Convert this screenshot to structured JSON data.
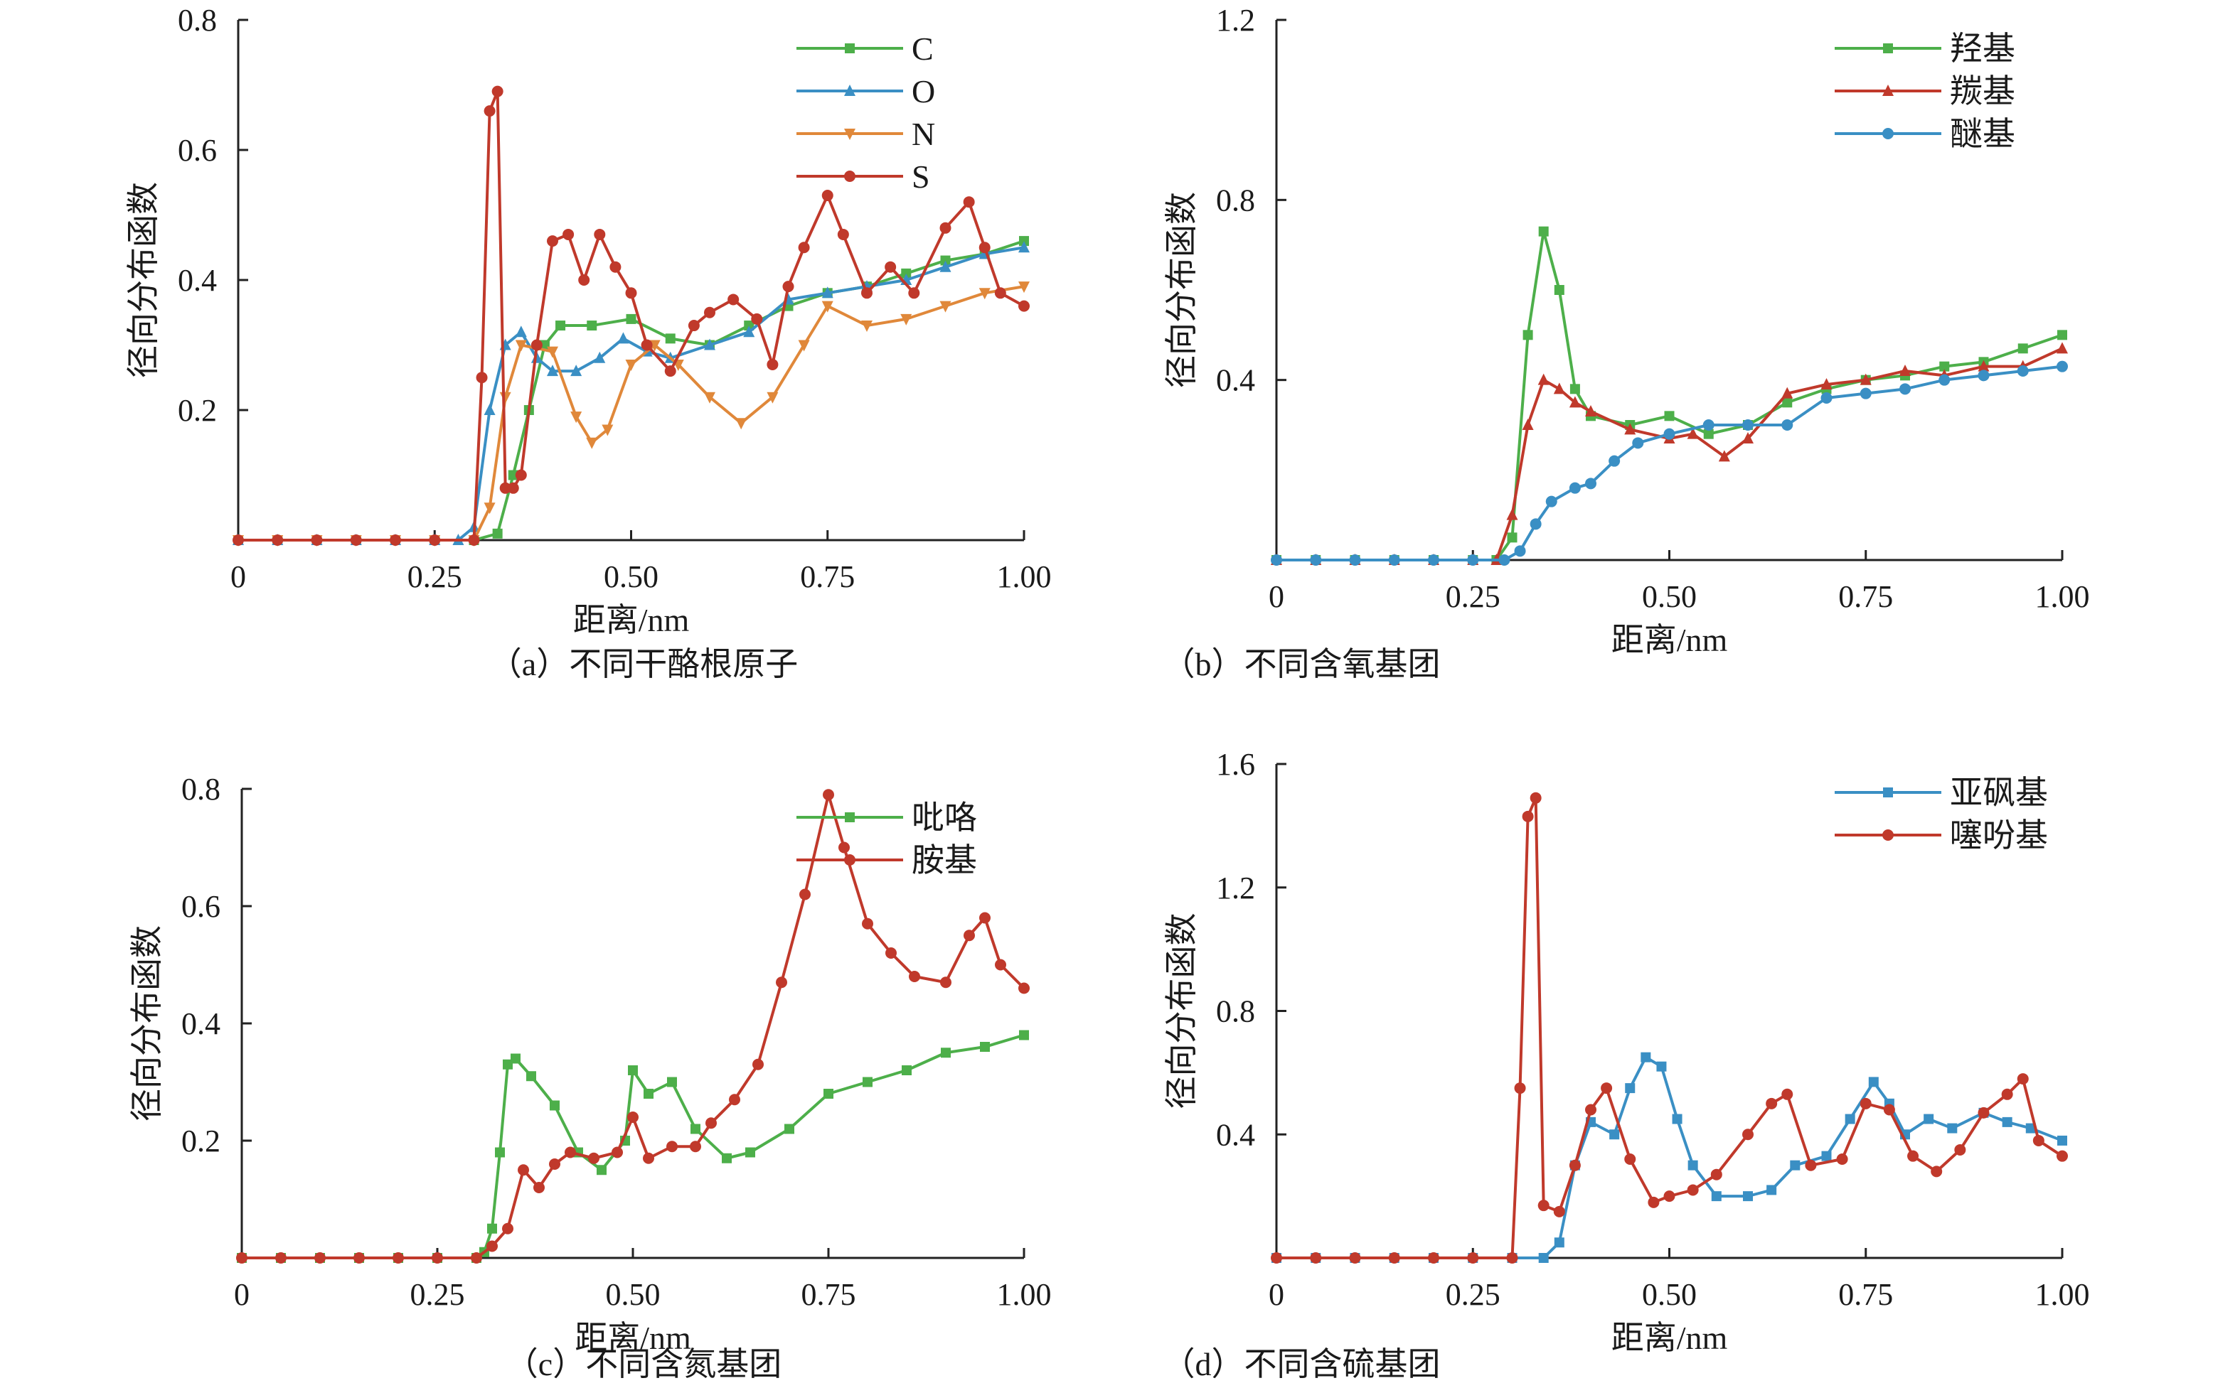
{
  "chart_data": [
    {
      "type": "line",
      "caption": "（a）不同干酪根原子",
      "xlabel": "距离/nm",
      "ylabel": "径向分布函数",
      "xlim": [
        0,
        1.0
      ],
      "ylim": [
        0,
        0.8
      ],
      "xticks": [
        0,
        0.25,
        0.5,
        0.75,
        1.0
      ],
      "xtick_labels": [
        "0",
        "0.25",
        "0.50",
        "0.75",
        "1.00"
      ],
      "yticks": [
        0.2,
        0.4,
        0.6,
        0.8
      ],
      "ytick_labels": [
        "0.2",
        "0.4",
        "0.6",
        "0.8"
      ],
      "legend_position": "top-right",
      "series": [
        {
          "name": "C",
          "color": "#4daf4a",
          "marker": "square",
          "x": [
            0.0,
            0.05,
            0.1,
            0.15,
            0.2,
            0.25,
            0.3,
            0.33,
            0.35,
            0.37,
            0.39,
            0.41,
            0.45,
            0.5,
            0.55,
            0.6,
            0.65,
            0.7,
            0.75,
            0.8,
            0.85,
            0.9,
            0.95,
            1.0
          ],
          "y": [
            0,
            0,
            0,
            0,
            0,
            0,
            0,
            0.01,
            0.1,
            0.2,
            0.3,
            0.33,
            0.33,
            0.34,
            0.31,
            0.3,
            0.33,
            0.36,
            0.38,
            0.39,
            0.41,
            0.43,
            0.44,
            0.46
          ]
        },
        {
          "name": "O",
          "color": "#3a8fc4",
          "marker": "triangle-up",
          "x": [
            0.0,
            0.05,
            0.1,
            0.15,
            0.2,
            0.25,
            0.28,
            0.3,
            0.32,
            0.34,
            0.36,
            0.38,
            0.4,
            0.43,
            0.46,
            0.49,
            0.52,
            0.55,
            0.6,
            0.65,
            0.7,
            0.75,
            0.8,
            0.85,
            0.9,
            0.95,
            1.0
          ],
          "y": [
            0,
            0,
            0,
            0,
            0,
            0,
            0,
            0.02,
            0.2,
            0.3,
            0.32,
            0.28,
            0.26,
            0.26,
            0.28,
            0.31,
            0.29,
            0.28,
            0.3,
            0.32,
            0.37,
            0.38,
            0.39,
            0.4,
            0.42,
            0.44,
            0.45
          ]
        },
        {
          "name": "N",
          "color": "#e0883a",
          "marker": "triangle-down",
          "x": [
            0.0,
            0.05,
            0.1,
            0.15,
            0.2,
            0.25,
            0.3,
            0.32,
            0.34,
            0.36,
            0.4,
            0.43,
            0.45,
            0.47,
            0.5,
            0.53,
            0.56,
            0.6,
            0.64,
            0.68,
            0.72,
            0.75,
            0.8,
            0.85,
            0.9,
            0.95,
            1.0
          ],
          "y": [
            0,
            0,
            0,
            0,
            0,
            0,
            0,
            0.05,
            0.22,
            0.3,
            0.29,
            0.19,
            0.15,
            0.17,
            0.27,
            0.3,
            0.27,
            0.22,
            0.18,
            0.22,
            0.3,
            0.36,
            0.33,
            0.34,
            0.36,
            0.38,
            0.39
          ]
        },
        {
          "name": "S",
          "color": "#c0392b",
          "marker": "circle",
          "x": [
            0.0,
            0.05,
            0.1,
            0.15,
            0.2,
            0.25,
            0.3,
            0.31,
            0.32,
            0.33,
            0.34,
            0.35,
            0.36,
            0.38,
            0.4,
            0.42,
            0.44,
            0.46,
            0.48,
            0.5,
            0.52,
            0.55,
            0.58,
            0.6,
            0.63,
            0.66,
            0.68,
            0.7,
            0.72,
            0.75,
            0.77,
            0.8,
            0.83,
            0.86,
            0.9,
            0.93,
            0.95,
            0.97,
            1.0
          ],
          "y": [
            0,
            0,
            0,
            0,
            0,
            0,
            0,
            0.25,
            0.66,
            0.69,
            0.08,
            0.08,
            0.1,
            0.3,
            0.46,
            0.47,
            0.4,
            0.47,
            0.42,
            0.38,
            0.3,
            0.26,
            0.33,
            0.35,
            0.37,
            0.34,
            0.27,
            0.39,
            0.45,
            0.53,
            0.47,
            0.38,
            0.42,
            0.38,
            0.48,
            0.52,
            0.45,
            0.38,
            0.36
          ]
        }
      ]
    },
    {
      "type": "line",
      "caption": "（b）不同含氧基团",
      "xlabel": "距离/nm",
      "ylabel": "径向分布函数",
      "xlim": [
        0,
        1.0
      ],
      "ylim": [
        0,
        1.2
      ],
      "xticks": [
        0,
        0.25,
        0.5,
        0.75,
        1.0
      ],
      "xtick_labels": [
        "0",
        "0.25",
        "0.50",
        "0.75",
        "1.00"
      ],
      "yticks": [
        0.4,
        0.8,
        1.2
      ],
      "ytick_labels": [
        "0.4",
        "0.8",
        "1.2"
      ],
      "legend_position": "top-right",
      "series": [
        {
          "name": "羟基",
          "color": "#4daf4a",
          "marker": "square",
          "x": [
            0.0,
            0.05,
            0.1,
            0.15,
            0.2,
            0.25,
            0.28,
            0.3,
            0.32,
            0.34,
            0.36,
            0.38,
            0.4,
            0.45,
            0.5,
            0.55,
            0.6,
            0.65,
            0.7,
            0.75,
            0.8,
            0.85,
            0.9,
            0.95,
            1.0
          ],
          "y": [
            0,
            0,
            0,
            0,
            0,
            0,
            0,
            0.05,
            0.5,
            0.73,
            0.6,
            0.38,
            0.32,
            0.3,
            0.32,
            0.28,
            0.3,
            0.35,
            0.38,
            0.4,
            0.41,
            0.43,
            0.44,
            0.47,
            0.5
          ]
        },
        {
          "name": "羰基",
          "color": "#c0392b",
          "marker": "triangle-up",
          "x": [
            0.0,
            0.05,
            0.1,
            0.15,
            0.2,
            0.25,
            0.28,
            0.3,
            0.32,
            0.34,
            0.36,
            0.38,
            0.4,
            0.45,
            0.5,
            0.53,
            0.57,
            0.6,
            0.65,
            0.7,
            0.75,
            0.8,
            0.85,
            0.9,
            0.95,
            1.0
          ],
          "y": [
            0,
            0,
            0,
            0,
            0,
            0,
            0,
            0.1,
            0.3,
            0.4,
            0.38,
            0.35,
            0.33,
            0.29,
            0.27,
            0.28,
            0.23,
            0.27,
            0.37,
            0.39,
            0.4,
            0.42,
            0.41,
            0.43,
            0.43,
            0.47
          ]
        },
        {
          "name": "醚基",
          "color": "#3a8fc4",
          "marker": "circle",
          "x": [
            0.0,
            0.05,
            0.1,
            0.15,
            0.2,
            0.25,
            0.29,
            0.31,
            0.33,
            0.35,
            0.38,
            0.4,
            0.43,
            0.46,
            0.5,
            0.55,
            0.6,
            0.65,
            0.7,
            0.75,
            0.8,
            0.85,
            0.9,
            0.95,
            1.0
          ],
          "y": [
            0,
            0,
            0,
            0,
            0,
            0,
            0,
            0.02,
            0.08,
            0.13,
            0.16,
            0.17,
            0.22,
            0.26,
            0.28,
            0.3,
            0.3,
            0.3,
            0.36,
            0.37,
            0.38,
            0.4,
            0.41,
            0.42,
            0.43
          ]
        }
      ]
    },
    {
      "type": "line",
      "caption": "（c）不同含氮基团",
      "xlabel": "距离/nm",
      "ylabel": "径向分布函数",
      "xlim": [
        0,
        1.0
      ],
      "ylim": [
        0,
        0.8
      ],
      "xticks": [
        0,
        0.25,
        0.5,
        0.75,
        1.0
      ],
      "xtick_labels": [
        "0",
        "0.25",
        "0.50",
        "0.75",
        "1.00"
      ],
      "yticks": [
        0.2,
        0.4,
        0.6,
        0.8
      ],
      "ytick_labels": [
        "0.2",
        "0.4",
        "0.6",
        "0.8"
      ],
      "legend_position": "top-right",
      "series": [
        {
          "name": "吡咯",
          "color": "#4daf4a",
          "marker": "square",
          "x": [
            0.0,
            0.05,
            0.1,
            0.15,
            0.2,
            0.25,
            0.3,
            0.31,
            0.32,
            0.33,
            0.34,
            0.35,
            0.37,
            0.4,
            0.43,
            0.46,
            0.49,
            0.5,
            0.52,
            0.55,
            0.58,
            0.62,
            0.65,
            0.7,
            0.75,
            0.8,
            0.85,
            0.9,
            0.95,
            1.0
          ],
          "y": [
            0,
            0,
            0,
            0,
            0,
            0,
            0,
            0.01,
            0.05,
            0.18,
            0.33,
            0.34,
            0.31,
            0.26,
            0.18,
            0.15,
            0.2,
            0.32,
            0.28,
            0.3,
            0.22,
            0.17,
            0.18,
            0.22,
            0.28,
            0.3,
            0.32,
            0.35,
            0.36,
            0.38
          ]
        },
        {
          "name": "胺基",
          "color": "#c0392b",
          "marker": "circle",
          "x": [
            0.0,
            0.05,
            0.1,
            0.15,
            0.2,
            0.25,
            0.3,
            0.32,
            0.34,
            0.36,
            0.38,
            0.4,
            0.42,
            0.45,
            0.48,
            0.5,
            0.52,
            0.55,
            0.58,
            0.6,
            0.63,
            0.66,
            0.69,
            0.72,
            0.75,
            0.77,
            0.8,
            0.83,
            0.86,
            0.9,
            0.93,
            0.95,
            0.97,
            1.0
          ],
          "y": [
            0,
            0,
            0,
            0,
            0,
            0,
            0,
            0.02,
            0.05,
            0.15,
            0.12,
            0.16,
            0.18,
            0.17,
            0.18,
            0.24,
            0.17,
            0.19,
            0.19,
            0.23,
            0.27,
            0.33,
            0.47,
            0.62,
            0.79,
            0.7,
            0.57,
            0.52,
            0.48,
            0.47,
            0.55,
            0.58,
            0.5,
            0.46
          ]
        }
      ]
    },
    {
      "type": "line",
      "caption": "（d）不同含硫基团",
      "xlabel": "距离/nm",
      "ylabel": "径向分布函数",
      "xlim": [
        0,
        1.0
      ],
      "ylim": [
        0,
        1.6
      ],
      "xticks": [
        0,
        0.25,
        0.5,
        0.75,
        1.0
      ],
      "xtick_labels": [
        "0",
        "0.25",
        "0.50",
        "0.75",
        "1.00"
      ],
      "yticks": [
        0.4,
        0.8,
        1.2,
        1.6
      ],
      "ytick_labels": [
        "0.4",
        "0.8",
        "1.2",
        "1.6"
      ],
      "legend_position": "top-right",
      "series": [
        {
          "name": "亚砜基",
          "color": "#3a8fc4",
          "marker": "square",
          "x": [
            0.0,
            0.05,
            0.1,
            0.15,
            0.2,
            0.25,
            0.3,
            0.34,
            0.36,
            0.38,
            0.4,
            0.43,
            0.45,
            0.47,
            0.49,
            0.51,
            0.53,
            0.56,
            0.6,
            0.63,
            0.66,
            0.7,
            0.73,
            0.76,
            0.78,
            0.8,
            0.83,
            0.86,
            0.9,
            0.93,
            0.96,
            1.0
          ],
          "y": [
            0,
            0,
            0,
            0,
            0,
            0,
            0,
            0,
            0.05,
            0.3,
            0.44,
            0.4,
            0.55,
            0.65,
            0.62,
            0.45,
            0.3,
            0.2,
            0.2,
            0.22,
            0.3,
            0.33,
            0.45,
            0.57,
            0.5,
            0.4,
            0.45,
            0.42,
            0.47,
            0.44,
            0.42,
            0.38
          ]
        },
        {
          "name": "噻吩基",
          "color": "#c0392b",
          "marker": "circle",
          "x": [
            0.0,
            0.05,
            0.1,
            0.15,
            0.2,
            0.25,
            0.3,
            0.31,
            0.32,
            0.33,
            0.34,
            0.36,
            0.38,
            0.4,
            0.42,
            0.45,
            0.48,
            0.5,
            0.53,
            0.56,
            0.6,
            0.63,
            0.65,
            0.68,
            0.72,
            0.75,
            0.78,
            0.81,
            0.84,
            0.87,
            0.9,
            0.93,
            0.95,
            0.97,
            1.0
          ],
          "y": [
            0,
            0,
            0,
            0,
            0,
            0,
            0,
            0.55,
            1.43,
            1.49,
            0.17,
            0.15,
            0.3,
            0.48,
            0.55,
            0.32,
            0.18,
            0.2,
            0.22,
            0.27,
            0.4,
            0.5,
            0.53,
            0.3,
            0.32,
            0.5,
            0.48,
            0.33,
            0.28,
            0.35,
            0.47,
            0.53,
            0.58,
            0.38,
            0.33
          ]
        }
      ]
    }
  ]
}
